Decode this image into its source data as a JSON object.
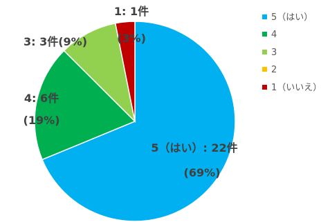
{
  "chart_data": {
    "type": "pie",
    "start_angle_deg": 0,
    "direction": "clockwise",
    "legend_position": "right",
    "title": "",
    "slices": [
      {
        "key": "s5",
        "legend": "5（はい）",
        "value": 22,
        "percent": "69%",
        "label_line1": "5（はい）: 22件",
        "label_line2": "(69%)",
        "color": "#00B0F0"
      },
      {
        "key": "s4",
        "legend": "4",
        "value": 6,
        "percent": "19%",
        "label_line1": "4: 6件",
        "label_line2": "(19%)",
        "color": "#00B050"
      },
      {
        "key": "s3",
        "legend": "3",
        "value": 3,
        "percent": "9%",
        "label_line1": "3: 3件(9%)",
        "label_line2": "",
        "color": "#92D050"
      },
      {
        "key": "s2",
        "legend": "2",
        "value": 0,
        "percent": "0%",
        "label_line1": "",
        "label_line2": "",
        "color": "#FFC000"
      },
      {
        "key": "s1",
        "legend": "1（いいえ）",
        "value": 1,
        "percent": "3%",
        "label_line1": "1: 1件",
        "label_line2": "(3%)",
        "color": "#C00000"
      }
    ]
  }
}
